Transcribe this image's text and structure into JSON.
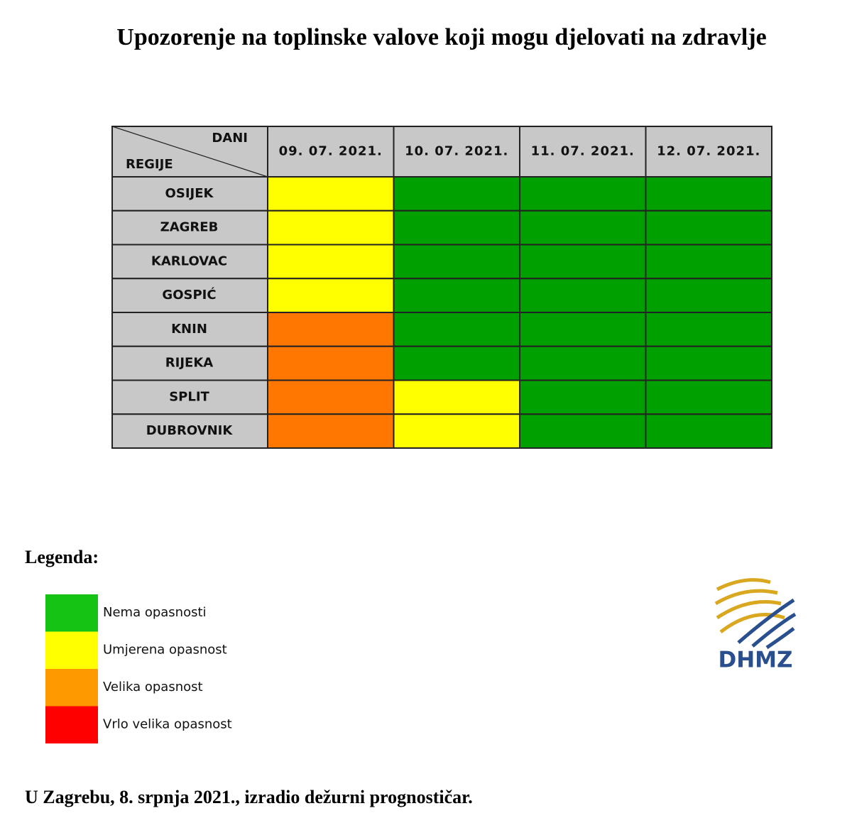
{
  "title": "Upozorenje na toplinske valove koji mogu djelovati na zdravlje",
  "table": {
    "corner_top": "DANI",
    "corner_bottom": "REGIJE",
    "dates": [
      "09. 07. 2021.",
      "10. 07. 2021.",
      "11. 07. 2021.",
      "12. 07. 2021."
    ],
    "header_color": "#c8c8c8",
    "rows": [
      {
        "region": "OSIJEK",
        "colors": [
          "#ffff00",
          "#00a000",
          "#00a000",
          "#00a000"
        ]
      },
      {
        "region": "ZAGREB",
        "colors": [
          "#ffff00",
          "#00a000",
          "#00a000",
          "#00a000"
        ]
      },
      {
        "region": "KARLOVAC",
        "colors": [
          "#ffff00",
          "#00a000",
          "#00a000",
          "#00a000"
        ]
      },
      {
        "region": "GOSPIĆ",
        "colors": [
          "#ffff00",
          "#00a000",
          "#00a000",
          "#00a000"
        ]
      },
      {
        "region": "KNIN",
        "colors": [
          "#ff7700",
          "#00a000",
          "#00a000",
          "#00a000"
        ]
      },
      {
        "region": "RIJEKA",
        "colors": [
          "#ff7700",
          "#00a000",
          "#00a000",
          "#00a000"
        ]
      },
      {
        "region": "SPLIT",
        "colors": [
          "#ff7700",
          "#ffff00",
          "#00a000",
          "#00a000"
        ]
      },
      {
        "region": "DUBROVNIK",
        "colors": [
          "#ff7700",
          "#ffff00",
          "#00a000",
          "#00a000"
        ]
      }
    ]
  },
  "legend": {
    "title": "Legenda:",
    "items": [
      {
        "label": "Nema opasnosti",
        "color": "#14c314"
      },
      {
        "label": "Umjerena opasnost",
        "color": "#ffff00"
      },
      {
        "label": "Velika opasnost",
        "color": "#ff9900"
      },
      {
        "label": "Vrlo velika opasnost",
        "color": "#ff0000"
      }
    ]
  },
  "logo": "DHMZ",
  "footer": "U Zagrebu, 8. srpnja 2021., izradio dežurni prognostičar."
}
